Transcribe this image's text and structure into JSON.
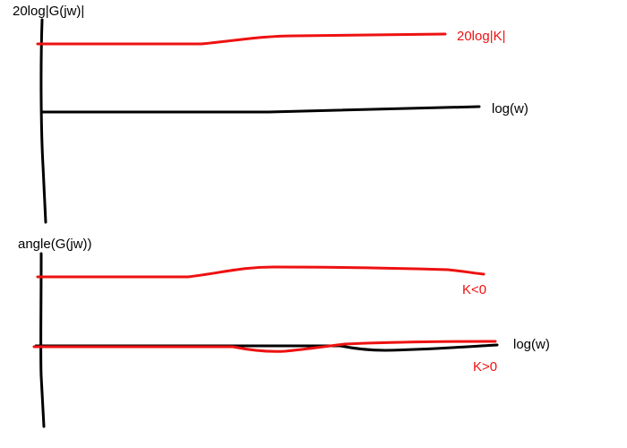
{
  "magnitude_plot": {
    "y_label": "20log|G(jw)|",
    "x_label": "log(w)",
    "curve_label": "20log|K|"
  },
  "phase_plot": {
    "y_label": "angle(G(jw))",
    "x_label": "log(w)",
    "upper_curve_label": "K<0",
    "lower_curve_label": "K>0"
  },
  "colors": {
    "axis": "#000000",
    "curve": "#ee1111"
  }
}
